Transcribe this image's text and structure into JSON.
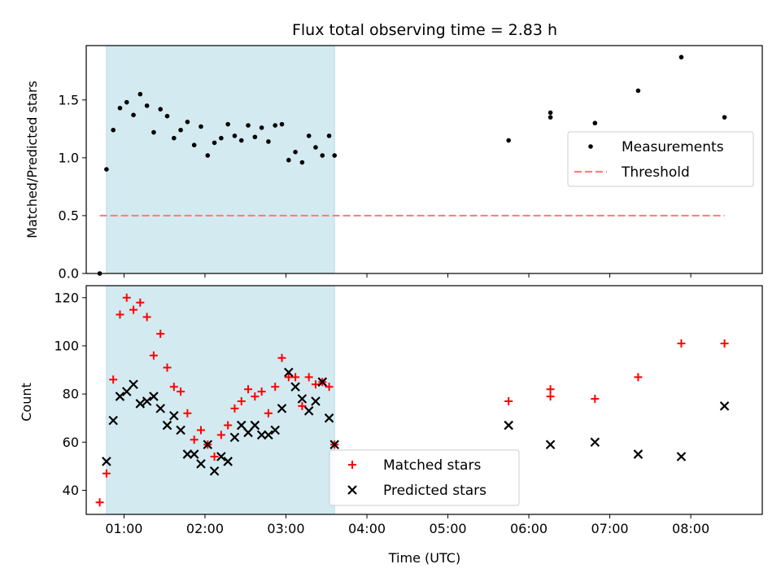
{
  "title": "Flux total observing time = 2.83 h",
  "xlabel": "Time (UTC)",
  "chart_data": [
    {
      "type": "scatter",
      "ylabel": "Matched/Predicted stars",
      "xlim": [
        "00:32",
        "08:53"
      ],
      "ylim": [
        0,
        1.97
      ],
      "yticks": [
        "0.0",
        "0.5",
        "1.0",
        "1.5"
      ],
      "ytick_values": [
        0,
        0.5,
        1.0,
        1.5
      ],
      "xticks_values": [
        "01:00",
        "02:00",
        "03:00",
        "04:00",
        "05:00",
        "06:00",
        "07:00",
        "08:00"
      ],
      "shaded_span": [
        "00:47",
        "03:36"
      ],
      "legend_placement": "center-right",
      "series": [
        {
          "name": "Measurements",
          "marker": "dot",
          "color": "#000000",
          "x": [
            "00:42",
            "00:47",
            "00:52",
            "00:57",
            "01:02",
            "01:07",
            "01:12",
            "01:17",
            "01:22",
            "01:27",
            "01:32",
            "01:37",
            "01:42",
            "01:47",
            "01:52",
            "01:57",
            "02:02",
            "02:07",
            "02:12",
            "02:17",
            "02:22",
            "02:27",
            "02:32",
            "02:37",
            "02:42",
            "02:47",
            "02:52",
            "02:57",
            "03:02",
            "03:07",
            "03:12",
            "03:17",
            "03:22",
            "03:27",
            "03:32",
            "03:36",
            "05:45",
            "06:16",
            "06:16",
            "06:49",
            "07:21",
            "07:53",
            "08:25"
          ],
          "y": [
            0.0,
            0.9,
            1.24,
            1.43,
            1.48,
            1.37,
            1.55,
            1.45,
            1.22,
            1.42,
            1.36,
            1.17,
            1.24,
            1.31,
            1.11,
            1.27,
            1.02,
            1.13,
            1.17,
            1.29,
            1.19,
            1.15,
            1.28,
            1.18,
            1.26,
            1.14,
            1.28,
            1.29,
            0.98,
            1.05,
            0.96,
            1.19,
            1.09,
            1.02,
            1.19,
            1.02,
            1.15,
            1.39,
            1.35,
            1.3,
            1.58,
            1.87,
            1.35
          ]
        },
        {
          "name": "Threshold",
          "marker": "dashed-line",
          "color": "#ff7f7f",
          "x": [
            "00:42",
            "08:25"
          ],
          "y": [
            0.5,
            0.5
          ]
        }
      ]
    },
    {
      "type": "scatter",
      "ylabel": "Count",
      "xlim": [
        "00:32",
        "08:53"
      ],
      "ylim": [
        30,
        125
      ],
      "yticks": [
        "40",
        "60",
        "80",
        "100",
        "120"
      ],
      "ytick_values": [
        40,
        60,
        80,
        100,
        120
      ],
      "xticks": [
        "01:00",
        "02:00",
        "03:00",
        "04:00",
        "05:00",
        "06:00",
        "07:00",
        "08:00"
      ],
      "shaded_span": [
        "00:47",
        "03:36"
      ],
      "legend_placement": "lower-center",
      "series": [
        {
          "name": "Matched stars",
          "marker": "plus",
          "color": "#ff0000",
          "x": [
            "00:42",
            "00:47",
            "00:52",
            "00:57",
            "01:02",
            "01:07",
            "01:12",
            "01:17",
            "01:22",
            "01:27",
            "01:32",
            "01:37",
            "01:42",
            "01:47",
            "01:52",
            "01:57",
            "02:02",
            "02:07",
            "02:12",
            "02:17",
            "02:22",
            "02:27",
            "02:32",
            "02:37",
            "02:42",
            "02:47",
            "02:52",
            "02:57",
            "03:02",
            "03:07",
            "03:12",
            "03:17",
            "03:22",
            "03:27",
            "03:32",
            "03:36",
            "05:45",
            "06:16",
            "06:16",
            "06:49",
            "07:21",
            "07:53",
            "08:25"
          ],
          "y": [
            35,
            47,
            86,
            113,
            120,
            115,
            118,
            112,
            96,
            105,
            91,
            83,
            81,
            72,
            61,
            65,
            59,
            54,
            63,
            67,
            74,
            77,
            82,
            79,
            81,
            72,
            83,
            95,
            87,
            87,
            75,
            87,
            84,
            85,
            83,
            59,
            77,
            82,
            79,
            78,
            87,
            101,
            101
          ]
        },
        {
          "name": "Predicted stars",
          "marker": "x",
          "color": "#000000",
          "x": [
            "00:47",
            "00:52",
            "00:57",
            "01:02",
            "01:07",
            "01:12",
            "01:17",
            "01:22",
            "01:27",
            "01:32",
            "01:37",
            "01:42",
            "01:47",
            "01:52",
            "01:57",
            "02:02",
            "02:07",
            "02:12",
            "02:17",
            "02:22",
            "02:27",
            "02:32",
            "02:37",
            "02:42",
            "02:47",
            "02:52",
            "02:57",
            "03:02",
            "03:07",
            "03:12",
            "03:17",
            "03:22",
            "03:27",
            "03:32",
            "03:36",
            "05:45",
            "06:16",
            "06:49",
            "07:21",
            "07:53",
            "08:25"
          ],
          "y": [
            52,
            69,
            79,
            81,
            84,
            76,
            77,
            79,
            74,
            67,
            71,
            65,
            55,
            55,
            51,
            59,
            48,
            54,
            52,
            62,
            67,
            64,
            67,
            63,
            63,
            65,
            74,
            89,
            83,
            78,
            73,
            77,
            85,
            70,
            59,
            67,
            59,
            60,
            55,
            54,
            75
          ]
        }
      ]
    }
  ]
}
